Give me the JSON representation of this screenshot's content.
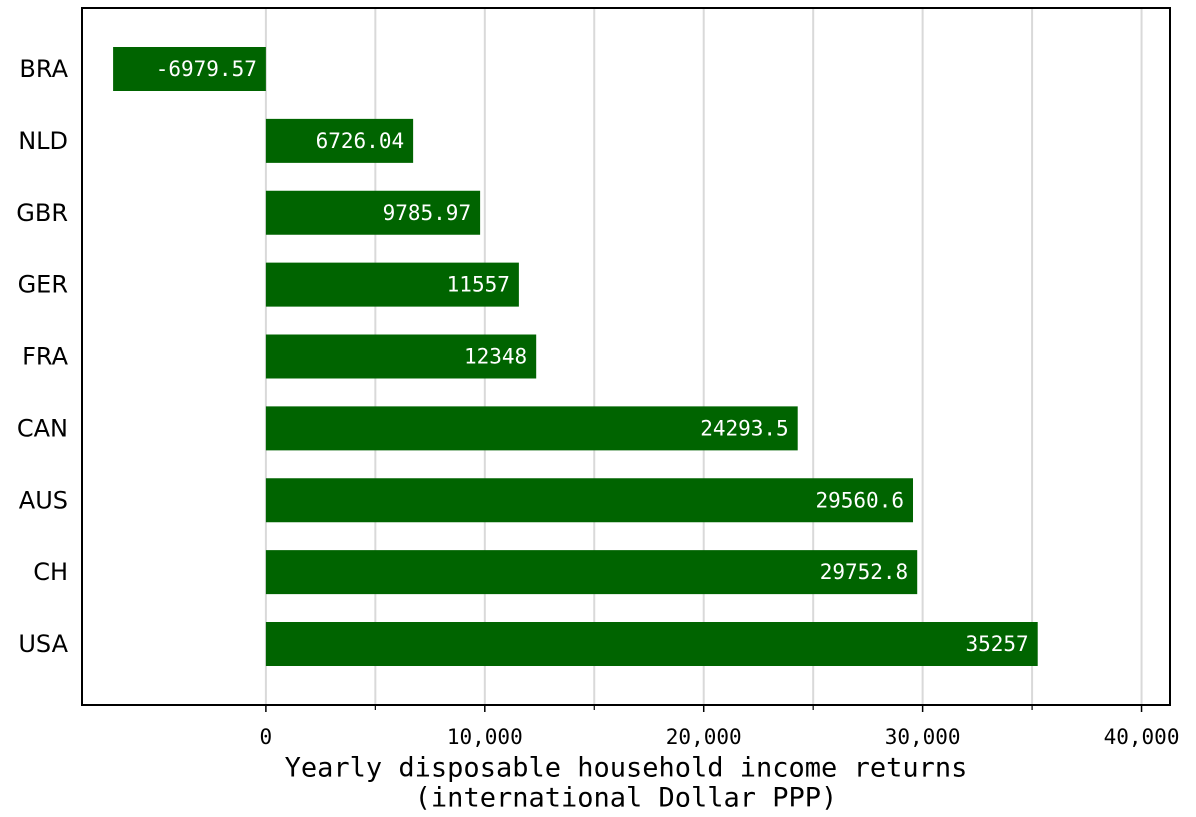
{
  "chart_data": {
    "type": "bar",
    "orientation": "horizontal",
    "categories": [
      "BRA",
      "NLD",
      "GBR",
      "GER",
      "FRA",
      "CAN",
      "AUS",
      "CH",
      "USA"
    ],
    "values": [
      -6979.57,
      6726.04,
      9785.97,
      11557,
      12348,
      24293.5,
      29560.6,
      29752.8,
      35257
    ],
    "color": "#006400",
    "x_label": [
      "Yearly disposable household income returns",
      "(international Dollar PPP)"
    ],
    "xlim": [
      -8400,
      41300
    ],
    "xticks": [
      0,
      {
        "value": 10000,
        "label": "10,000"
      },
      {
        "value": 20000,
        "label": "20,000"
      },
      {
        "value": 30000,
        "label": "30,000"
      },
      {
        "value": 40000,
        "label": "40,000"
      }
    ],
    "xminor_ticks": [
      5000,
      15000,
      25000,
      35000
    ],
    "grid": true
  }
}
